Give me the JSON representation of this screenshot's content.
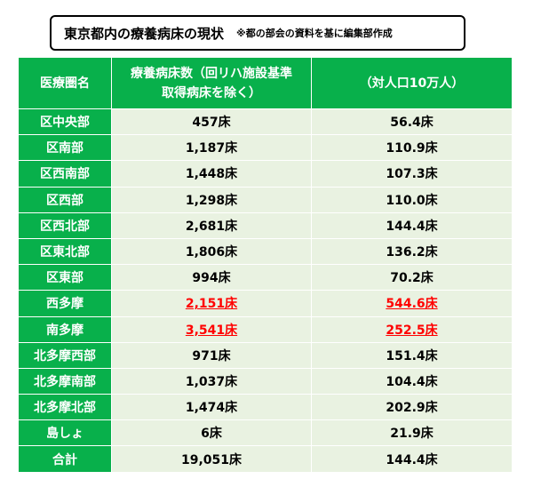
{
  "title": {
    "main": "東京都内の療養病床の現状",
    "note": "※都の部会の資料を基に編集部作成"
  },
  "table": {
    "headers": {
      "area": "医療圏名",
      "beds_line1": "療養病床数（回リハ施設基準",
      "beds_line2": "取得病床を除く）",
      "per100k": "（対人口10万人）"
    },
    "rows": [
      {
        "area": "区中央部",
        "beds": "457床",
        "per100k": "56.4床",
        "highlight": false
      },
      {
        "area": "区南部",
        "beds": "1,187床",
        "per100k": "110.9床",
        "highlight": false
      },
      {
        "area": "区西南部",
        "beds": "1,448床",
        "per100k": "107.3床",
        "highlight": false
      },
      {
        "area": "区西部",
        "beds": "1,298床",
        "per100k": "110.0床",
        "highlight": false
      },
      {
        "area": "区西北部",
        "beds": "2,681床",
        "per100k": "144.4床",
        "highlight": false
      },
      {
        "area": "区東北部",
        "beds": "1,806床",
        "per100k": "136.2床",
        "highlight": false
      },
      {
        "area": "区東部",
        "beds": "994床",
        "per100k": "70.2床",
        "highlight": false
      },
      {
        "area": "西多摩",
        "beds": "2,151床",
        "per100k": "544.6床",
        "highlight": true
      },
      {
        "area": "南多摩",
        "beds": "3,541床",
        "per100k": "252.5床",
        "highlight": true
      },
      {
        "area": "北多摩西部",
        "beds": "971床",
        "per100k": "151.4床",
        "highlight": false
      },
      {
        "area": "北多摩南部",
        "beds": "1,037床",
        "per100k": "104.4床",
        "highlight": false
      },
      {
        "area": "北多摩北部",
        "beds": "1,474床",
        "per100k": "202.9床",
        "highlight": false
      },
      {
        "area": "島しょ",
        "beds": "6床",
        "per100k": "21.9床",
        "highlight": false
      },
      {
        "area": "合計",
        "beds": "19,051床",
        "per100k": "144.4床",
        "highlight": false
      }
    ]
  },
  "colors": {
    "header_green": "#08b04b",
    "cell_bg": "#e9f2e1",
    "highlight_red": "#ff0000"
  }
}
